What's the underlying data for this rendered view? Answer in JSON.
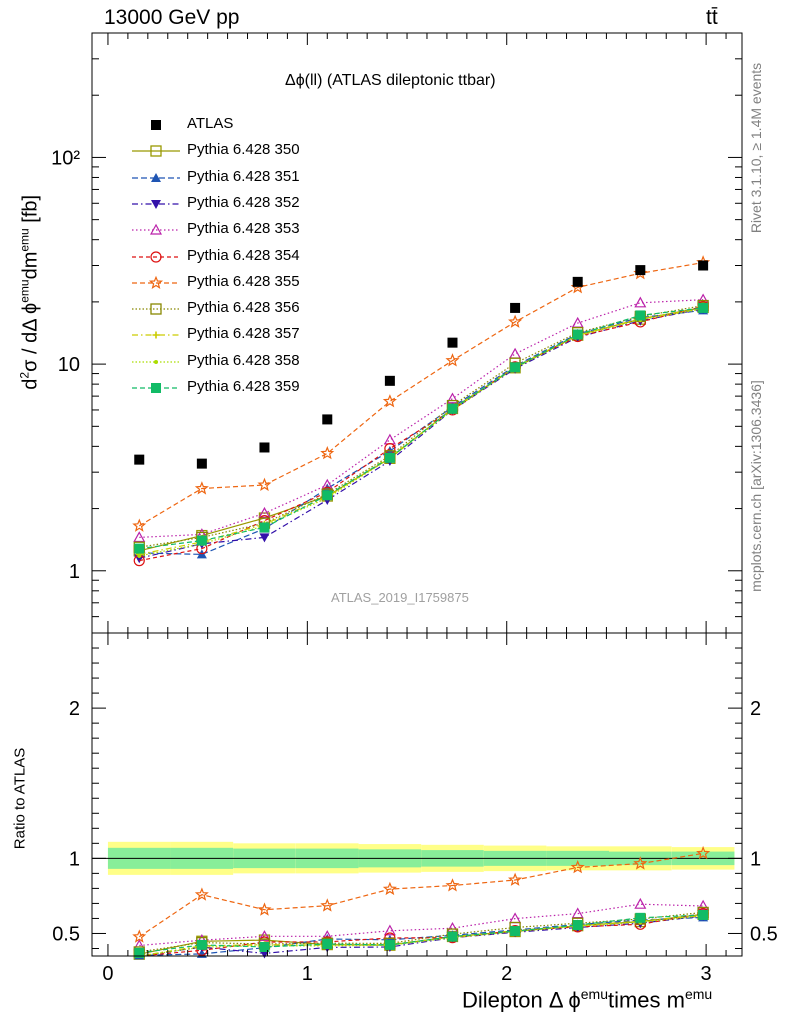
{
  "header": {
    "energy_label": "13000 GeV pp",
    "process_label": "tt̄"
  },
  "side_labels": {
    "rivet": "Rivet 3.1.10, ≥ 1.4M events",
    "mcplots": "mcplots.cern.ch [arXiv:1306.3436]"
  },
  "watermark": "ATLAS_2019_I1759875",
  "chart_data": {
    "type": "scatter",
    "title": "Δϕ(ll) (ATLAS dileptonic ttbar)",
    "ylabel": "d²σ / dΔ ϕ^emu dm^emu [fb]",
    "ratio_ylabel": "Ratio to ATLAS",
    "xlabel": "Dilepton Δ ϕ^emu times m^emu",
    "xlim": [
      -0.08,
      3.18
    ],
    "ylim": [
      0.5,
      400
    ],
    "yscale": "log",
    "ratio_ylim": [
      0.35,
      2.5
    ],
    "x_ticks": [
      "0",
      "1",
      "2",
      "3"
    ],
    "y_ticks": [
      "1",
      "10",
      "10²"
    ],
    "ratio_ticks": [
      "0.5",
      "1",
      "2"
    ],
    "x": [
      0.157,
      0.471,
      0.785,
      1.1,
      1.414,
      1.728,
      2.042,
      2.356,
      2.67,
      2.985
    ],
    "atlas": {
      "name": "ATLAS",
      "values": [
        3.45,
        3.3,
        3.95,
        5.4,
        8.3,
        12.7,
        18.7,
        25.0,
        28.5,
        30.0
      ],
      "band_inner": [
        0.07,
        0.07,
        0.065,
        0.065,
        0.06,
        0.055,
        0.05,
        0.05,
        0.045,
        0.045
      ],
      "band_outer": [
        0.11,
        0.11,
        0.1,
        0.1,
        0.095,
        0.09,
        0.085,
        0.08,
        0.08,
        0.075
      ]
    },
    "series": [
      {
        "name": "Pythia 6.428 350",
        "color": "#999900",
        "marker": "square-open",
        "dash": "",
        "values": [
          1.25,
          1.48,
          1.8,
          2.3,
          3.5,
          6.1,
          9.6,
          13.8,
          16.5,
          18.8
        ],
        "ratio": [
          0.362,
          0.448,
          0.456,
          0.426,
          0.422,
          0.48,
          0.513,
          0.552,
          0.579,
          0.627
        ]
      },
      {
        "name": "Pythia 6.428 351",
        "color": "#1f55b3",
        "marker": "triangle-up",
        "dash": "6,3",
        "values": [
          1.22,
          1.2,
          1.6,
          2.5,
          3.8,
          6.2,
          9.8,
          14.0,
          16.8,
          18.2
        ],
        "ratio": [
          0.354,
          0.364,
          0.405,
          0.463,
          0.458,
          0.488,
          0.524,
          0.56,
          0.589,
          0.607
        ]
      },
      {
        "name": "Pythia 6.428 352",
        "color": "#3311aa",
        "marker": "triangle-down",
        "dash": "6,3,1.5,3",
        "values": [
          1.15,
          1.35,
          1.45,
          2.2,
          3.4,
          6.0,
          9.5,
          13.5,
          16.2,
          18.5
        ],
        "ratio": [
          0.333,
          0.409,
          0.367,
          0.407,
          0.41,
          0.472,
          0.508,
          0.54,
          0.568,
          0.617
        ]
      },
      {
        "name": "Pythia 6.428 353",
        "color": "#bb22aa",
        "marker": "triangle-up-open",
        "dash": "1.5,2.5",
        "values": [
          1.45,
          1.5,
          1.9,
          2.6,
          4.3,
          6.8,
          11.2,
          15.8,
          19.8,
          20.5
        ],
        "ratio": [
          0.42,
          0.455,
          0.481,
          0.481,
          0.518,
          0.535,
          0.599,
          0.632,
          0.695,
          0.683
        ]
      },
      {
        "name": "Pythia 6.428 354",
        "color": "#dd1111",
        "marker": "circle-open",
        "dash": "4,3",
        "values": [
          1.12,
          1.28,
          1.75,
          2.4,
          3.9,
          6.0,
          9.7,
          13.6,
          16.0,
          19.0
        ],
        "ratio": [
          0.325,
          0.388,
          0.443,
          0.444,
          0.47,
          0.472,
          0.519,
          0.544,
          0.561,
          0.633
        ]
      },
      {
        "name": "Pythia 6.428 355",
        "color": "#ee6611",
        "marker": "star-open",
        "dash": "5,3",
        "values": [
          1.65,
          2.5,
          2.6,
          3.7,
          6.6,
          10.4,
          16.0,
          23.5,
          27.5,
          31.0
        ],
        "ratio": [
          0.478,
          0.758,
          0.658,
          0.685,
          0.795,
          0.819,
          0.856,
          0.94,
          0.965,
          1.033
        ]
      },
      {
        "name": "Pythia 6.428 356",
        "color": "#888800",
        "marker": "square-open",
        "dash": "1.5,2",
        "values": [
          1.3,
          1.45,
          1.7,
          2.35,
          3.6,
          6.3,
          10.1,
          14.2,
          17.0,
          19.2
        ],
        "ratio": [
          0.377,
          0.439,
          0.43,
          0.435,
          0.434,
          0.496,
          0.54,
          0.568,
          0.596,
          0.64
        ]
      },
      {
        "name": "Pythia 6.428 357",
        "color": "#cccc00",
        "marker": "cross",
        "dash": "6,3,1.5,3",
        "values": [
          1.2,
          1.38,
          1.68,
          2.28,
          3.55,
          6.05,
          9.7,
          13.8,
          16.6,
          18.6
        ],
        "ratio": [
          0.348,
          0.418,
          0.425,
          0.422,
          0.428,
          0.476,
          0.519,
          0.552,
          0.582,
          0.62
        ]
      },
      {
        "name": "Pythia 6.428 358",
        "color": "#aadd00",
        "marker": "dot",
        "dash": "1.5,2",
        "values": [
          1.18,
          1.35,
          1.65,
          2.25,
          3.5,
          6.0,
          9.6,
          13.7,
          16.4,
          18.5
        ],
        "ratio": [
          0.342,
          0.409,
          0.418,
          0.417,
          0.422,
          0.472,
          0.513,
          0.548,
          0.575,
          0.617
        ]
      },
      {
        "name": "Pythia 6.428 359",
        "color": "#11bb66",
        "marker": "square",
        "dash": "5,3",
        "values": [
          1.28,
          1.4,
          1.62,
          2.32,
          3.52,
          6.08,
          9.65,
          13.9,
          17.2,
          18.7
        ],
        "ratio": [
          0.371,
          0.424,
          0.41,
          0.43,
          0.424,
          0.479,
          0.516,
          0.556,
          0.604,
          0.623
        ]
      }
    ]
  }
}
